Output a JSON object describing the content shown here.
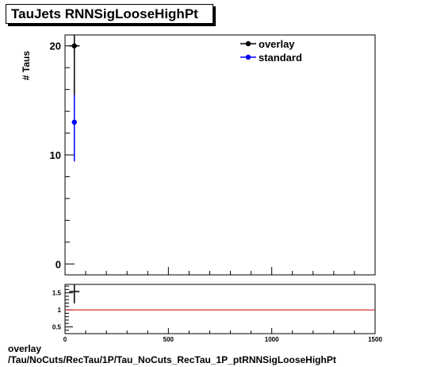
{
  "chart_data": [
    {
      "type": "scatter",
      "title": "TauJets RNNSigLooseHighPt",
      "xlabel": "",
      "ylabel": "# Taus",
      "xlim": [
        0,
        1500
      ],
      "ylim": [
        -1,
        21
      ],
      "ytick_labels": [
        "0",
        "10",
        "20"
      ],
      "legend_position": "top-right",
      "series": [
        {
          "name": "overlay",
          "color": "#000000",
          "x": [
            45
          ],
          "y": [
            20
          ],
          "xerr": [
            25
          ],
          "yerr": [
            4.5
          ]
        },
        {
          "name": "standard",
          "color": "#0000ff",
          "x": [
            45
          ],
          "y": [
            13
          ],
          "xerr": [
            0
          ],
          "yerr": [
            3.6
          ]
        }
      ]
    },
    {
      "type": "scatter",
      "title": "",
      "xlabel": "",
      "ylabel": "",
      "xlim": [
        0,
        1500
      ],
      "ylim": [
        0.3,
        1.75
      ],
      "xtick_labels": [
        "0",
        "500",
        "1000",
        "1500"
      ],
      "ytick_labels": [
        "0.5",
        "1",
        "1.5"
      ],
      "reference_line": {
        "y": 1,
        "color": "#cc0000"
      },
      "series": [
        {
          "name": "",
          "color": "#000000",
          "x": [
            45
          ],
          "y": [
            1.54
          ],
          "xerr": [
            25
          ],
          "yerr": [
            0.35
          ]
        }
      ]
    }
  ],
  "footer": {
    "line1": "overlay",
    "line2": "/Tau/NoCuts/RecTau/1P/Tau_NoCuts_RecTau_1P_ptRNNSigLooseHighPt"
  }
}
